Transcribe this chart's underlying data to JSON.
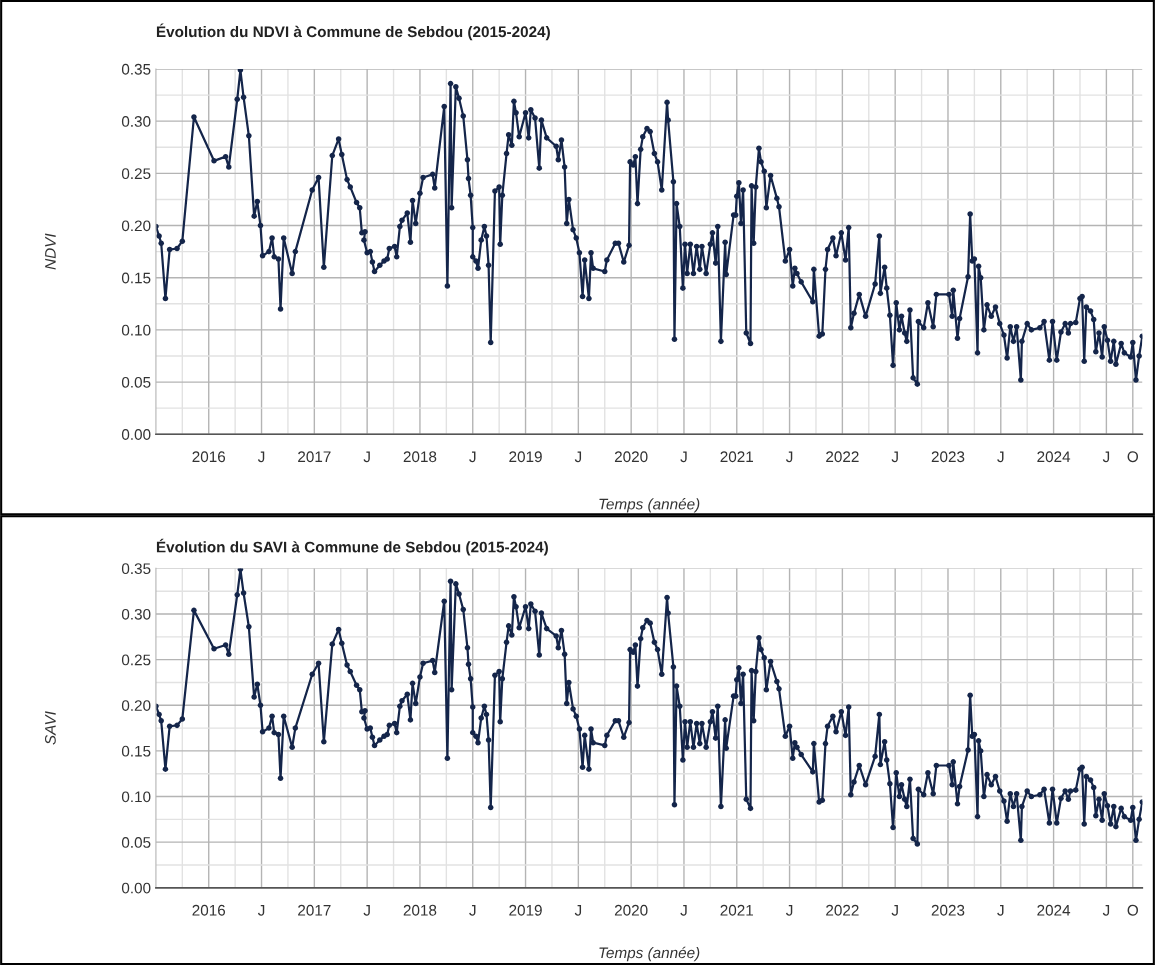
{
  "chart_data": [
    {
      "type": "line",
      "title": "Évolution du NDVI à Commune de Sebdou (2015-2024)",
      "xlabel": "Temps (année)",
      "ylabel": "NDVI",
      "x": [
        2015.5,
        2015.53,
        2015.55,
        2015.59,
        2015.63,
        2015.7,
        2015.75,
        2015.86,
        2016.05,
        2016.16,
        2016.19,
        2016.27,
        2016.3,
        2016.33,
        2016.38,
        2016.43,
        2016.46,
        2016.49,
        2016.51,
        2016.57,
        2016.6,
        2016.62,
        2016.66,
        2016.68,
        2016.71,
        2016.79,
        2016.82,
        2016.98,
        2017.04,
        2017.09,
        2017.17,
        2017.23,
        2017.26,
        2017.31,
        2017.34,
        2017.4,
        2017.43,
        2017.45,
        2017.48,
        2017.47,
        2017.5,
        2017.53,
        2017.55,
        2017.57,
        2017.62,
        2017.66,
        2017.69,
        2017.71,
        2017.76,
        2017.78,
        2017.81,
        2017.83,
        2017.88,
        2017.91,
        2017.93,
        2017.96,
        2018.0,
        2018.03,
        2018.12,
        2018.14,
        2018.23,
        2018.26,
        2018.29,
        2018.3,
        2018.34,
        2018.37,
        2018.41,
        2018.45,
        2018.46,
        2018.48,
        2018.5,
        2018.5,
        2018.53,
        2018.55,
        2018.58,
        2018.61,
        2018.63,
        2018.65,
        2018.67,
        2018.71,
        2018.75,
        2018.76,
        2018.78,
        2018.82,
        2018.84,
        2018.87,
        2018.89,
        2018.91,
        2018.94,
        2019.0,
        2019.03,
        2019.05,
        2019.09,
        2019.13,
        2019.15,
        2019.2,
        2019.29,
        2019.31,
        2019.34,
        2019.37,
        2019.39,
        2019.41,
        2019.45,
        2019.48,
        2019.51,
        2019.54,
        2019.56,
        2019.6,
        2019.62,
        2019.64,
        2019.75,
        2019.77,
        2019.85,
        2019.88,
        2019.93,
        2019.98,
        2019.99,
        2020.02,
        2020.04,
        2020.06,
        2020.09,
        2020.11,
        2020.15,
        2020.18,
        2020.22,
        2020.25,
        2020.29,
        2020.34,
        2020.35,
        2020.4,
        2020.41,
        2020.43,
        2020.46,
        2020.49,
        2020.51,
        2020.53,
        2020.56,
        2020.59,
        2020.62,
        2020.65,
        2020.67,
        2020.71,
        2020.75,
        2020.77,
        2020.8,
        2020.82,
        2020.85,
        2020.89,
        2020.9,
        2020.97,
        2020.99,
        2021.0,
        2021.02,
        2021.04,
        2021.06,
        2021.09,
        2021.13,
        2021.14,
        2021.16,
        2021.18,
        2021.21,
        2021.23,
        2021.26,
        2021.28,
        2021.32,
        2021.38,
        2021.4,
        2021.46,
        2021.5,
        2021.53,
        2021.55,
        2021.57,
        2021.61,
        2021.72,
        2021.73,
        2021.78,
        2021.81,
        2021.84,
        2021.86,
        2021.91,
        2021.94,
        2021.99,
        2022.03,
        2022.06,
        2022.08,
        2022.11,
        2022.16,
        2022.22,
        2022.31,
        2022.35,
        2022.36,
        2022.4,
        2022.42,
        2022.45,
        2022.48,
        2022.51,
        2022.54,
        2022.56,
        2022.59,
        2022.61,
        2022.64,
        2022.67,
        2022.71,
        2022.72,
        2022.77,
        2022.81,
        2022.86,
        2022.89,
        2023.01,
        2023.04,
        2023.05,
        2023.09,
        2023.11,
        2023.19,
        2023.21,
        2023.23,
        2023.25,
        2023.28,
        2023.29,
        2023.31,
        2023.34,
        2023.37,
        2023.41,
        2023.45,
        2023.49,
        2023.53,
        2023.56,
        2023.59,
        2023.62,
        2023.65,
        2023.69,
        2023.7,
        2023.75,
        2023.79,
        2023.87,
        2023.91,
        2023.96,
        2023.99,
        2024.03,
        2024.07,
        2024.11,
        2024.14,
        2024.16,
        2024.21,
        2024.25,
        2024.27,
        2024.29,
        2024.31,
        2024.35,
        2024.38,
        2024.4,
        2024.43,
        2024.46,
        2024.48,
        2024.51,
        2024.54,
        2024.57,
        2024.59,
        2024.64,
        2024.67,
        2024.73,
        2024.75,
        2024.78,
        2024.81,
        2024.84
      ],
      "series": [
        {
          "color": "#14254a",
          "values": [
            0.199,
            0.19,
            0.183,
            0.13,
            0.177,
            0.178,
            0.185,
            0.304,
            0.262,
            0.266,
            0.256,
            0.321,
            0.349,
            0.323,
            0.286,
            0.209,
            0.223,
            0.2,
            0.171,
            0.175,
            0.188,
            0.17,
            0.168,
            0.12,
            0.188,
            0.154,
            0.175,
            0.234,
            0.246,
            0.16,
            0.267,
            0.283,
            0.268,
            0.244,
            0.237,
            0.222,
            0.217,
            0.193,
            0.194,
            0.186,
            0.174,
            0.175,
            0.165,
            0.156,
            0.162,
            0.166,
            0.168,
            0.178,
            0.18,
            0.17,
            0.199,
            0.205,
            0.212,
            0.184,
            0.224,
            0.202,
            0.231,
            0.246,
            0.249,
            0.236,
            0.314,
            0.142,
            0.336,
            0.217,
            0.333,
            0.322,
            0.305,
            0.263,
            0.245,
            0.229,
            0.198,
            0.17,
            0.166,
            0.159,
            0.186,
            0.199,
            0.19,
            0.162,
            0.088,
            0.233,
            0.237,
            0.182,
            0.229,
            0.269,
            0.287,
            0.277,
            0.319,
            0.308,
            0.285,
            0.308,
            0.284,
            0.311,
            0.303,
            0.255,
            0.301,
            0.284,
            0.276,
            0.263,
            0.282,
            0.256,
            0.202,
            0.225,
            0.196,
            0.188,
            0.174,
            0.132,
            0.167,
            0.13,
            0.174,
            0.159,
            0.156,
            0.167,
            0.183,
            0.183,
            0.165,
            0.181,
            0.261,
            0.258,
            0.266,
            0.221,
            0.273,
            0.285,
            0.293,
            0.29,
            0.269,
            0.261,
            0.234,
            0.318,
            0.301,
            0.242,
            0.091,
            0.221,
            0.199,
            0.14,
            0.182,
            0.154,
            0.182,
            0.154,
            0.18,
            0.158,
            0.18,
            0.154,
            0.182,
            0.193,
            0.164,
            0.199,
            0.089,
            0.184,
            0.153,
            0.21,
            0.21,
            0.228,
            0.241,
            0.202,
            0.234,
            0.097,
            0.087,
            0.238,
            0.183,
            0.237,
            0.274,
            0.261,
            0.252,
            0.217,
            0.248,
            0.226,
            0.218,
            0.166,
            0.177,
            0.142,
            0.159,
            0.154,
            0.146,
            0.127,
            0.158,
            0.094,
            0.096,
            0.158,
            0.177,
            0.188,
            0.171,
            0.193,
            0.167,
            0.198,
            0.102,
            0.116,
            0.134,
            0.113,
            0.144,
            0.19,
            0.135,
            0.16,
            0.14,
            0.114,
            0.066,
            0.126,
            0.1,
            0.113,
            0.097,
            0.089,
            0.119,
            0.054,
            0.048,
            0.108,
            0.102,
            0.126,
            0.103,
            0.134,
            0.134,
            0.113,
            0.138,
            0.092,
            0.111,
            0.151,
            0.211,
            0.166,
            0.168,
            0.078,
            0.161,
            0.15,
            0.1,
            0.124,
            0.113,
            0.122,
            0.106,
            0.095,
            0.073,
            0.103,
            0.089,
            0.103,
            0.052,
            0.089,
            0.106,
            0.1,
            0.102,
            0.108,
            0.071,
            0.108,
            0.071,
            0.098,
            0.106,
            0.097,
            0.106,
            0.107,
            0.13,
            0.132,
            0.07,
            0.122,
            0.118,
            0.11,
            0.079,
            0.097,
            0.074,
            0.103,
            0.09,
            0.07,
            0.089,
            0.067,
            0.087,
            0.078,
            0.074,
            0.088,
            0.052,
            0.075,
            0.094
          ]
        }
      ],
      "xlim": [
        2015.5,
        2024.84
      ],
      "xticks": [
        {
          "value": 2015.75,
          "label": null
        },
        {
          "value": 2016,
          "label": "2016"
        },
        {
          "value": 2016.25,
          "label": null
        },
        {
          "value": 2016.5,
          "label": "J"
        },
        {
          "value": 2016.75,
          "label": null
        },
        {
          "value": 2017,
          "label": "2017"
        },
        {
          "value": 2017.25,
          "label": null
        },
        {
          "value": 2017.5,
          "label": "J"
        },
        {
          "value": 2017.75,
          "label": null
        },
        {
          "value": 2018,
          "label": "2018"
        },
        {
          "value": 2018.25,
          "label": null
        },
        {
          "value": 2018.5,
          "label": "J"
        },
        {
          "value": 2018.75,
          "label": null
        },
        {
          "value": 2019,
          "label": "2019"
        },
        {
          "value": 2019.25,
          "label": null
        },
        {
          "value": 2019.5,
          "label": "J"
        },
        {
          "value": 2019.75,
          "label": null
        },
        {
          "value": 2020,
          "label": "2020"
        },
        {
          "value": 2020.25,
          "label": null
        },
        {
          "value": 2020.5,
          "label": "J"
        },
        {
          "value": 2020.75,
          "label": null
        },
        {
          "value": 2021,
          "label": "2021"
        },
        {
          "value": 2021.25,
          "label": null
        },
        {
          "value": 2021.5,
          "label": "J"
        },
        {
          "value": 2021.75,
          "label": null
        },
        {
          "value": 2022,
          "label": "2022"
        },
        {
          "value": 2022.25,
          "label": null
        },
        {
          "value": 2022.5,
          "label": "J"
        },
        {
          "value": 2022.75,
          "label": null
        },
        {
          "value": 2023,
          "label": "2023"
        },
        {
          "value": 2023.25,
          "label": null
        },
        {
          "value": 2023.5,
          "label": "J"
        },
        {
          "value": 2023.75,
          "label": null
        },
        {
          "value": 2024,
          "label": "2024"
        },
        {
          "value": 2024.25,
          "label": null
        },
        {
          "value": 2024.5,
          "label": "J"
        },
        {
          "value": 2024.75,
          "label": "O"
        }
      ],
      "ylim": [
        0,
        0.35
      ],
      "yticks": [
        {
          "value": 0,
          "label": "0.00"
        },
        {
          "value": 0.025,
          "label": null
        },
        {
          "value": 0.05,
          "label": "0.05"
        },
        {
          "value": 0.075,
          "label": null
        },
        {
          "value": 0.1,
          "label": "0.10"
        },
        {
          "value": 0.125,
          "label": null
        },
        {
          "value": 0.15,
          "label": "0.15"
        },
        {
          "value": 0.175,
          "label": null
        },
        {
          "value": 0.2,
          "label": "0.20"
        },
        {
          "value": 0.225,
          "label": null
        },
        {
          "value": 0.25,
          "label": "0.25"
        },
        {
          "value": 0.275,
          "label": null
        },
        {
          "value": 0.3,
          "label": "0.30"
        },
        {
          "value": 0.325,
          "label": null
        },
        {
          "value": 0.35,
          "label": "0.35"
        }
      ],
      "grid": true,
      "marker": "circle",
      "line_style": "solid"
    },
    {
      "type": "line",
      "title": "Évolution du SAVI à Commune de Sebdou (2015-2024)",
      "xlabel": "Temps (année)",
      "ylabel": "SAVI",
      "x": [
        2015.5,
        2015.53,
        2015.55,
        2015.59,
        2015.63,
        2015.7,
        2015.75,
        2015.86,
        2016.05,
        2016.16,
        2016.19,
        2016.27,
        2016.3,
        2016.33,
        2016.38,
        2016.43,
        2016.46,
        2016.49,
        2016.51,
        2016.57,
        2016.6,
        2016.62,
        2016.66,
        2016.68,
        2016.71,
        2016.79,
        2016.82,
        2016.98,
        2017.04,
        2017.09,
        2017.17,
        2017.23,
        2017.26,
        2017.31,
        2017.34,
        2017.4,
        2017.43,
        2017.45,
        2017.48,
        2017.47,
        2017.5,
        2017.53,
        2017.55,
        2017.57,
        2017.62,
        2017.66,
        2017.69,
        2017.71,
        2017.76,
        2017.78,
        2017.81,
        2017.83,
        2017.88,
        2017.91,
        2017.93,
        2017.96,
        2018.0,
        2018.03,
        2018.12,
        2018.14,
        2018.23,
        2018.26,
        2018.29,
        2018.3,
        2018.34,
        2018.37,
        2018.41,
        2018.45,
        2018.46,
        2018.48,
        2018.5,
        2018.5,
        2018.53,
        2018.55,
        2018.58,
        2018.61,
        2018.63,
        2018.65,
        2018.67,
        2018.71,
        2018.75,
        2018.76,
        2018.78,
        2018.82,
        2018.84,
        2018.87,
        2018.89,
        2018.91,
        2018.94,
        2019.0,
        2019.03,
        2019.05,
        2019.09,
        2019.13,
        2019.15,
        2019.2,
        2019.29,
        2019.31,
        2019.34,
        2019.37,
        2019.39,
        2019.41,
        2019.45,
        2019.48,
        2019.51,
        2019.54,
        2019.56,
        2019.6,
        2019.62,
        2019.64,
        2019.75,
        2019.77,
        2019.85,
        2019.88,
        2019.93,
        2019.98,
        2019.99,
        2020.02,
        2020.04,
        2020.06,
        2020.09,
        2020.11,
        2020.15,
        2020.18,
        2020.22,
        2020.25,
        2020.29,
        2020.34,
        2020.35,
        2020.4,
        2020.41,
        2020.43,
        2020.46,
        2020.49,
        2020.51,
        2020.53,
        2020.56,
        2020.59,
        2020.62,
        2020.65,
        2020.67,
        2020.71,
        2020.75,
        2020.77,
        2020.8,
        2020.82,
        2020.85,
        2020.89,
        2020.9,
        2020.97,
        2020.99,
        2021.0,
        2021.02,
        2021.04,
        2021.06,
        2021.09,
        2021.13,
        2021.14,
        2021.16,
        2021.18,
        2021.21,
        2021.23,
        2021.26,
        2021.28,
        2021.32,
        2021.38,
        2021.4,
        2021.46,
        2021.5,
        2021.53,
        2021.55,
        2021.57,
        2021.61,
        2021.72,
        2021.73,
        2021.78,
        2021.81,
        2021.84,
        2021.86,
        2021.91,
        2021.94,
        2021.99,
        2022.03,
        2022.06,
        2022.08,
        2022.11,
        2022.16,
        2022.22,
        2022.31,
        2022.35,
        2022.36,
        2022.4,
        2022.42,
        2022.45,
        2022.48,
        2022.51,
        2022.54,
        2022.56,
        2022.59,
        2022.61,
        2022.64,
        2022.67,
        2022.71,
        2022.72,
        2022.77,
        2022.81,
        2022.86,
        2022.89,
        2023.01,
        2023.04,
        2023.05,
        2023.09,
        2023.11,
        2023.19,
        2023.21,
        2023.23,
        2023.25,
        2023.28,
        2023.29,
        2023.31,
        2023.34,
        2023.37,
        2023.41,
        2023.45,
        2023.49,
        2023.53,
        2023.56,
        2023.59,
        2023.62,
        2023.65,
        2023.69,
        2023.7,
        2023.75,
        2023.79,
        2023.87,
        2023.91,
        2023.96,
        2023.99,
        2024.03,
        2024.07,
        2024.11,
        2024.14,
        2024.16,
        2024.21,
        2024.25,
        2024.27,
        2024.29,
        2024.31,
        2024.35,
        2024.38,
        2024.4,
        2024.43,
        2024.46,
        2024.48,
        2024.51,
        2024.54,
        2024.57,
        2024.59,
        2024.64,
        2024.67,
        2024.73,
        2024.75,
        2024.78,
        2024.81,
        2024.84
      ],
      "series": [
        {
          "color": "#14254a",
          "values": [
            0.199,
            0.19,
            0.183,
            0.13,
            0.177,
            0.178,
            0.185,
            0.304,
            0.262,
            0.266,
            0.256,
            0.321,
            0.349,
            0.323,
            0.286,
            0.209,
            0.223,
            0.2,
            0.171,
            0.175,
            0.188,
            0.17,
            0.168,
            0.12,
            0.188,
            0.154,
            0.175,
            0.234,
            0.246,
            0.16,
            0.267,
            0.283,
            0.268,
            0.244,
            0.237,
            0.222,
            0.217,
            0.193,
            0.194,
            0.186,
            0.174,
            0.175,
            0.165,
            0.156,
            0.162,
            0.166,
            0.168,
            0.178,
            0.18,
            0.17,
            0.199,
            0.205,
            0.212,
            0.184,
            0.224,
            0.202,
            0.231,
            0.246,
            0.249,
            0.236,
            0.314,
            0.142,
            0.336,
            0.217,
            0.333,
            0.322,
            0.305,
            0.263,
            0.245,
            0.229,
            0.198,
            0.17,
            0.166,
            0.159,
            0.186,
            0.199,
            0.19,
            0.162,
            0.088,
            0.233,
            0.237,
            0.182,
            0.229,
            0.269,
            0.287,
            0.277,
            0.319,
            0.308,
            0.285,
            0.308,
            0.284,
            0.311,
            0.303,
            0.255,
            0.301,
            0.284,
            0.276,
            0.263,
            0.282,
            0.256,
            0.202,
            0.225,
            0.196,
            0.188,
            0.174,
            0.132,
            0.167,
            0.13,
            0.174,
            0.159,
            0.156,
            0.167,
            0.183,
            0.183,
            0.165,
            0.181,
            0.261,
            0.258,
            0.266,
            0.221,
            0.273,
            0.285,
            0.293,
            0.29,
            0.269,
            0.261,
            0.234,
            0.318,
            0.301,
            0.242,
            0.091,
            0.221,
            0.199,
            0.14,
            0.182,
            0.154,
            0.182,
            0.154,
            0.18,
            0.158,
            0.18,
            0.154,
            0.182,
            0.193,
            0.164,
            0.199,
            0.089,
            0.184,
            0.153,
            0.21,
            0.21,
            0.228,
            0.241,
            0.202,
            0.234,
            0.097,
            0.087,
            0.238,
            0.183,
            0.237,
            0.274,
            0.261,
            0.252,
            0.217,
            0.248,
            0.226,
            0.218,
            0.166,
            0.177,
            0.142,
            0.159,
            0.154,
            0.146,
            0.127,
            0.158,
            0.094,
            0.096,
            0.158,
            0.177,
            0.188,
            0.171,
            0.193,
            0.167,
            0.198,
            0.102,
            0.116,
            0.134,
            0.113,
            0.144,
            0.19,
            0.135,
            0.16,
            0.14,
            0.114,
            0.066,
            0.126,
            0.1,
            0.113,
            0.097,
            0.089,
            0.119,
            0.054,
            0.048,
            0.108,
            0.102,
            0.126,
            0.103,
            0.134,
            0.134,
            0.113,
            0.138,
            0.092,
            0.111,
            0.151,
            0.211,
            0.166,
            0.168,
            0.078,
            0.161,
            0.15,
            0.1,
            0.124,
            0.113,
            0.122,
            0.106,
            0.095,
            0.073,
            0.103,
            0.089,
            0.103,
            0.052,
            0.089,
            0.106,
            0.1,
            0.102,
            0.108,
            0.071,
            0.108,
            0.071,
            0.098,
            0.106,
            0.097,
            0.106,
            0.107,
            0.13,
            0.132,
            0.07,
            0.122,
            0.118,
            0.11,
            0.079,
            0.097,
            0.074,
            0.103,
            0.09,
            0.07,
            0.089,
            0.067,
            0.087,
            0.078,
            0.074,
            0.088,
            0.052,
            0.075,
            0.094
          ]
        }
      ],
      "xlim": [
        2015.5,
        2024.84
      ],
      "xticks": [
        {
          "value": 2015.75,
          "label": null
        },
        {
          "value": 2016,
          "label": "2016"
        },
        {
          "value": 2016.25,
          "label": null
        },
        {
          "value": 2016.5,
          "label": "J"
        },
        {
          "value": 2016.75,
          "label": null
        },
        {
          "value": 2017,
          "label": "2017"
        },
        {
          "value": 2017.25,
          "label": null
        },
        {
          "value": 2017.5,
          "label": "J"
        },
        {
          "value": 2017.75,
          "label": null
        },
        {
          "value": 2018,
          "label": "2018"
        },
        {
          "value": 2018.25,
          "label": null
        },
        {
          "value": 2018.5,
          "label": "J"
        },
        {
          "value": 2018.75,
          "label": null
        },
        {
          "value": 2019,
          "label": "2019"
        },
        {
          "value": 2019.25,
          "label": null
        },
        {
          "value": 2019.5,
          "label": "J"
        },
        {
          "value": 2019.75,
          "label": null
        },
        {
          "value": 2020,
          "label": "2020"
        },
        {
          "value": 2020.25,
          "label": null
        },
        {
          "value": 2020.5,
          "label": "J"
        },
        {
          "value": 2020.75,
          "label": null
        },
        {
          "value": 2021,
          "label": "2021"
        },
        {
          "value": 2021.25,
          "label": null
        },
        {
          "value": 2021.5,
          "label": "J"
        },
        {
          "value": 2021.75,
          "label": null
        },
        {
          "value": 2022,
          "label": "2022"
        },
        {
          "value": 2022.25,
          "label": null
        },
        {
          "value": 2022.5,
          "label": "J"
        },
        {
          "value": 2022.75,
          "label": null
        },
        {
          "value": 2023,
          "label": "2023"
        },
        {
          "value": 2023.25,
          "label": null
        },
        {
          "value": 2023.5,
          "label": "J"
        },
        {
          "value": 2023.75,
          "label": null
        },
        {
          "value": 2024,
          "label": "2024"
        },
        {
          "value": 2024.25,
          "label": null
        },
        {
          "value": 2024.5,
          "label": "J"
        },
        {
          "value": 2024.75,
          "label": "O"
        }
      ],
      "ylim": [
        0,
        0.35
      ],
      "yticks": [
        {
          "value": 0,
          "label": "0.00"
        },
        {
          "value": 0.025,
          "label": null
        },
        {
          "value": 0.05,
          "label": "0.05"
        },
        {
          "value": 0.075,
          "label": null
        },
        {
          "value": 0.1,
          "label": "0.10"
        },
        {
          "value": 0.125,
          "label": null
        },
        {
          "value": 0.15,
          "label": "0.15"
        },
        {
          "value": 0.175,
          "label": null
        },
        {
          "value": 0.2,
          "label": "0.20"
        },
        {
          "value": 0.225,
          "label": null
        },
        {
          "value": 0.25,
          "label": "0.25"
        },
        {
          "value": 0.275,
          "label": null
        },
        {
          "value": 0.3,
          "label": "0.30"
        },
        {
          "value": 0.325,
          "label": null
        },
        {
          "value": 0.35,
          "label": "0.35"
        }
      ],
      "grid": true,
      "marker": "circle",
      "line_style": "solid"
    }
  ]
}
